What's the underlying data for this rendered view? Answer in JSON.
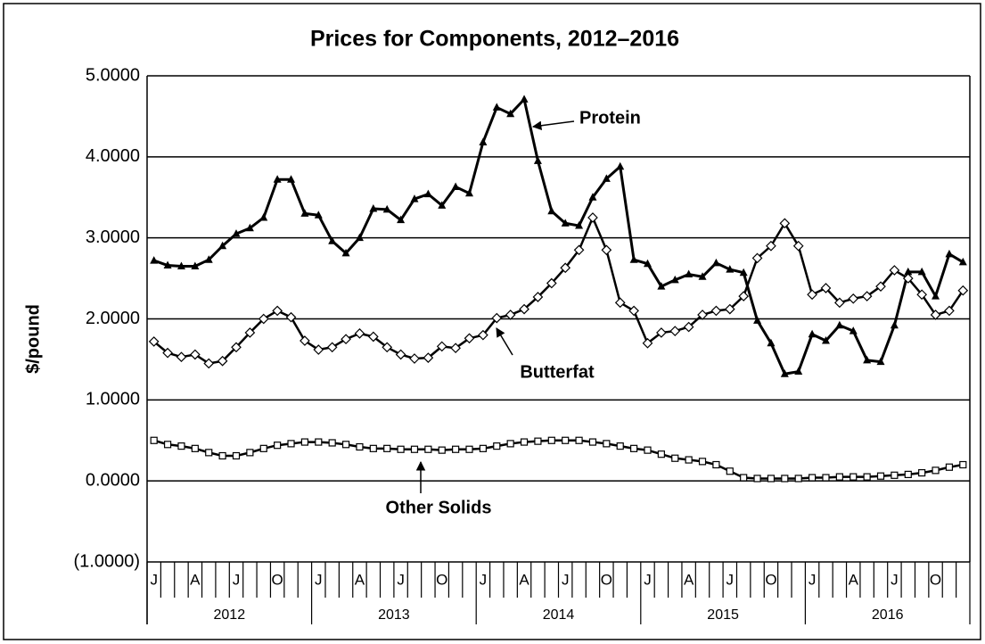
{
  "chart_data": {
    "type": "line",
    "title": "Prices for Components, 2012–2016",
    "y_label": "$/pound",
    "categories": [
      "J",
      null,
      null,
      "A",
      null,
      null,
      "J",
      null,
      null,
      "O",
      null,
      null,
      "J",
      null,
      null,
      "A",
      null,
      null,
      "J",
      null,
      null,
      "O",
      null,
      null,
      "J",
      null,
      null,
      "A",
      null,
      null,
      "J",
      null,
      null,
      "O",
      null,
      null,
      "J",
      null,
      null,
      "A",
      null,
      null,
      "J",
      null,
      null,
      "O",
      null,
      null,
      "J",
      null,
      null,
      "A",
      null,
      null,
      "J",
      null,
      null,
      "O",
      null,
      null
    ],
    "years": [
      "2012",
      "2013",
      "2014",
      "2015",
      "2016"
    ],
    "series": [
      {
        "name": "Protein",
        "color": "#000000",
        "marker": "triangle",
        "values": [
          2.72,
          2.66,
          2.65,
          2.65,
          2.73,
          2.9,
          3.05,
          3.12,
          3.25,
          3.72,
          3.72,
          3.3,
          3.28,
          2.96,
          2.81,
          3.0,
          3.36,
          3.35,
          3.22,
          3.48,
          3.54,
          3.4,
          3.63,
          3.55,
          4.18,
          4.61,
          4.53,
          4.71,
          3.95,
          3.33,
          3.18,
          3.15,
          3.5,
          3.73,
          3.88,
          2.73,
          2.68,
          2.4,
          2.48,
          2.55,
          2.52,
          2.69,
          2.61,
          2.57,
          1.98,
          1.7,
          1.32,
          1.35,
          1.81,
          1.73,
          1.92,
          1.85,
          1.49,
          1.47,
          1.92,
          2.58,
          2.58,
          2.28,
          2.8,
          2.7
        ]
      },
      {
        "name": "Butterfat",
        "color": "#000000",
        "marker": "diamond",
        "values": [
          1.72,
          1.58,
          1.53,
          1.56,
          1.45,
          1.48,
          1.65,
          1.83,
          2.0,
          2.1,
          2.02,
          1.73,
          1.62,
          1.65,
          1.75,
          1.82,
          1.78,
          1.65,
          1.56,
          1.51,
          1.52,
          1.66,
          1.64,
          1.76,
          1.8,
          2.01,
          2.05,
          2.12,
          2.27,
          2.44,
          2.63,
          2.85,
          3.25,
          2.85,
          2.2,
          2.1,
          1.7,
          1.83,
          1.85,
          1.9,
          2.05,
          2.1,
          2.12,
          2.28,
          2.75,
          2.9,
          3.18,
          2.9,
          2.3,
          2.38,
          2.2,
          2.25,
          2.28,
          2.4,
          2.6,
          2.5,
          2.3,
          2.05,
          2.1,
          2.35
        ]
      },
      {
        "name": "Other Solids",
        "color": "#000000",
        "marker": "square",
        "values": [
          0.5,
          0.45,
          0.43,
          0.4,
          0.35,
          0.31,
          0.31,
          0.35,
          0.4,
          0.44,
          0.46,
          0.48,
          0.48,
          0.47,
          0.45,
          0.42,
          0.4,
          0.4,
          0.39,
          0.39,
          0.39,
          0.38,
          0.39,
          0.39,
          0.4,
          0.43,
          0.46,
          0.48,
          0.49,
          0.5,
          0.5,
          0.5,
          0.48,
          0.46,
          0.43,
          0.4,
          0.38,
          0.33,
          0.28,
          0.26,
          0.24,
          0.2,
          0.12,
          0.04,
          0.03,
          0.03,
          0.03,
          0.03,
          0.04,
          0.04,
          0.05,
          0.05,
          0.05,
          0.06,
          0.07,
          0.08,
          0.1,
          0.13,
          0.17,
          0.2
        ]
      }
    ],
    "ylim": [
      -1,
      5
    ],
    "yticks": [
      {
        "value": -1,
        "label": "(1.0000)"
      },
      {
        "value": 0,
        "label": "0.0000"
      },
      {
        "value": 1,
        "label": "1.0000"
      },
      {
        "value": 2,
        "label": "2.0000"
      },
      {
        "value": 3,
        "label": "3.0000"
      },
      {
        "value": 4,
        "label": "4.0000"
      },
      {
        "value": 5,
        "label": "5.0000"
      }
    ],
    "grid": true,
    "annotations": [
      {
        "text": "Protein"
      },
      {
        "text": "Butterfat"
      },
      {
        "text": "Other Solids"
      }
    ]
  }
}
